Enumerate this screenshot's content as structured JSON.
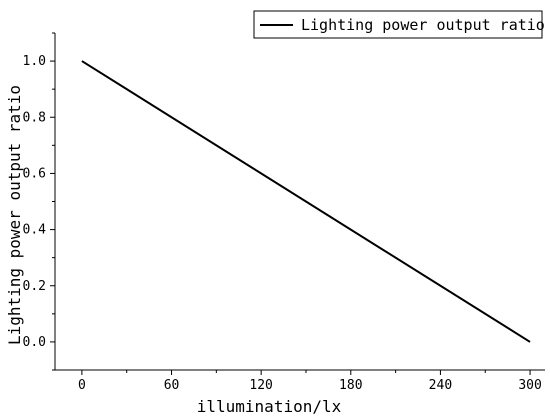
{
  "chart_data": {
    "type": "line",
    "xlabel": "illumination/lx",
    "ylabel": "Lighting power output ratio",
    "xlim": [
      -18,
      310
    ],
    "ylim": [
      -0.1,
      1.1
    ],
    "xticks": [
      0,
      60,
      120,
      180,
      240,
      300
    ],
    "yticks": [
      0.0,
      0.2,
      0.4,
      0.6,
      0.8,
      1.0
    ],
    "xtick_labels": [
      "0",
      "60",
      "120",
      "180",
      "240",
      "300"
    ],
    "ytick_labels": [
      "0.0",
      "0.2",
      "0.4",
      "0.6",
      "0.8",
      "1.0"
    ],
    "grid": false,
    "legend_position": "top-right",
    "series": [
      {
        "name": "Lighting power output ratio",
        "color": "#000000",
        "x": [
          0,
          300
        ],
        "y": [
          1.0,
          0.0
        ]
      }
    ]
  }
}
